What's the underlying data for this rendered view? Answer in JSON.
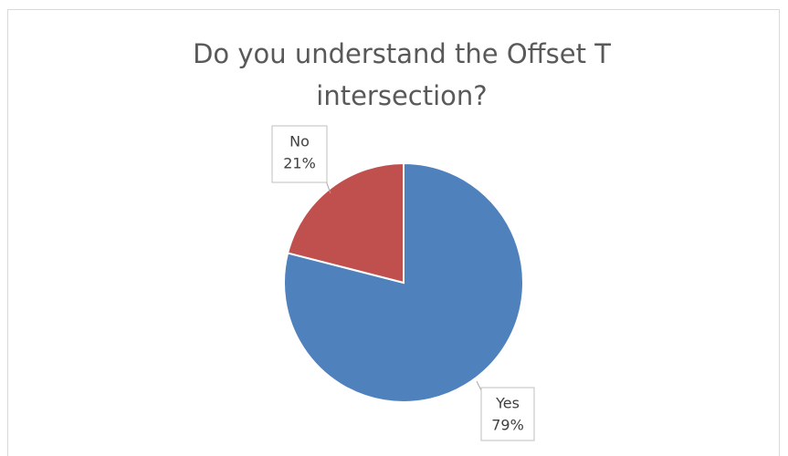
{
  "chart_data": {
    "type": "pie",
    "title": "Do you understand the Offset T intersection?",
    "categories": [
      "Yes",
      "No"
    ],
    "values": [
      79,
      21
    ],
    "value_labels": [
      "79%",
      "21%"
    ],
    "colors": [
      "#4f81bd",
      "#c0504d"
    ]
  }
}
